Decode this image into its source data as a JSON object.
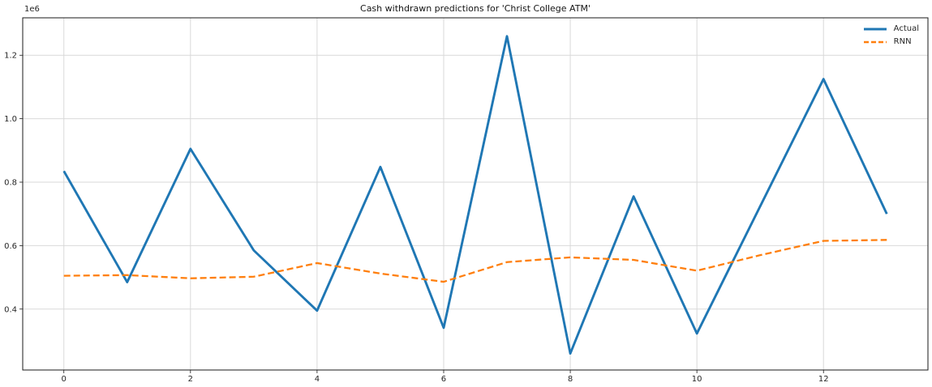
{
  "figure": {
    "title": "Cash withdrawn predictions for 'Christ College ATM'",
    "y_offset_label": "1e6"
  },
  "chart_data": {
    "type": "line",
    "title": "Cash withdrawn predictions for 'Christ College ATM'",
    "xlabel": "",
    "ylabel": "",
    "x": [
      0,
      1,
      2,
      3,
      4,
      5,
      6,
      7,
      8,
      9,
      10,
      11,
      12,
      13
    ],
    "series": [
      {
        "name": "Actual",
        "color": "#1f77b4",
        "style": "solid",
        "values": [
          835000,
          485000,
          905000,
          585000,
          395000,
          848000,
          341000,
          1260000,
          260000,
          755000,
          323000,
          724000,
          1125000,
          700000
        ]
      },
      {
        "name": "RNN",
        "color": "#ff7f0e",
        "style": "dashed",
        "values": [
          505000,
          507000,
          497000,
          502000,
          545000,
          512000,
          486000,
          548000,
          563000,
          555000,
          521000,
          570000,
          615000,
          618000
        ]
      }
    ],
    "xlim": [
      -0.65,
      13.65
    ],
    "ylim": [
      208000,
      1318000
    ],
    "xticks": {
      "values": [
        0,
        2,
        4,
        6,
        8,
        10,
        12
      ],
      "labels": [
        "0",
        "2",
        "4",
        "6",
        "8",
        "10",
        "12"
      ]
    },
    "yticks": {
      "values": [
        400000,
        600000,
        800000,
        1000000,
        1200000
      ],
      "labels": [
        "0.4",
        "0.6",
        "0.8",
        "1.0",
        "1.2"
      ]
    },
    "y_offset_label": "1e6",
    "grid": true,
    "grid_color": "#d9d9d9",
    "spine_color": "#1a1a1a",
    "legend_position": "upper right"
  }
}
